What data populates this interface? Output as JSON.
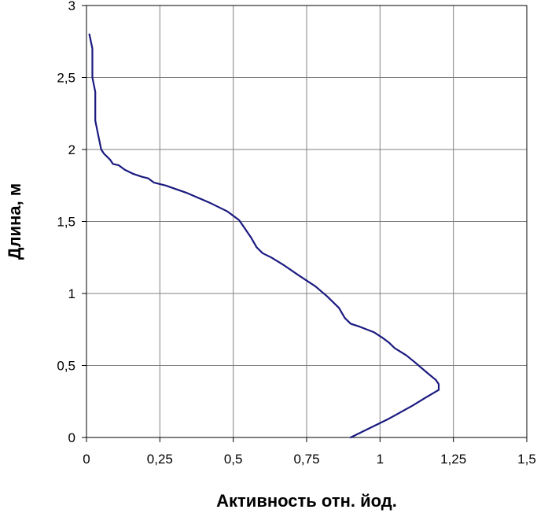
{
  "chart_data": {
    "type": "line",
    "title": "",
    "xlabel": "Активность отн. йод.",
    "ylabel": "Длина, м",
    "xlim": [
      0,
      1.5
    ],
    "ylim": [
      0,
      3
    ],
    "grid": true,
    "line_color": "#1a1a80",
    "x_ticks": [
      {
        "value": 0,
        "label": "0"
      },
      {
        "value": 0.25,
        "label": "0,25"
      },
      {
        "value": 0.5,
        "label": "0,5"
      },
      {
        "value": 0.75,
        "label": "0,75"
      },
      {
        "value": 1,
        "label": "1"
      },
      {
        "value": 1.25,
        "label": "1,25"
      },
      {
        "value": 1.5,
        "label": "1,5"
      }
    ],
    "y_ticks": [
      {
        "value": 0,
        "label": "0"
      },
      {
        "value": 0.5,
        "label": "0,5"
      },
      {
        "value": 1,
        "label": "1"
      },
      {
        "value": 1.5,
        "label": "1,5"
      },
      {
        "value": 2,
        "label": "2"
      },
      {
        "value": 2.5,
        "label": "2,5"
      },
      {
        "value": 3,
        "label": "3"
      }
    ],
    "series": [
      {
        "points": [
          [
            0.9,
            0.0
          ],
          [
            0.96,
            0.06
          ],
          [
            1.03,
            0.13
          ],
          [
            1.11,
            0.22
          ],
          [
            1.15,
            0.27
          ],
          [
            1.2,
            0.33
          ],
          [
            1.2,
            0.37
          ],
          [
            1.19,
            0.4
          ],
          [
            1.16,
            0.45
          ],
          [
            1.12,
            0.52
          ],
          [
            1.09,
            0.57
          ],
          [
            1.05,
            0.62
          ],
          [
            1.03,
            0.66
          ],
          [
            1.01,
            0.69
          ],
          [
            0.98,
            0.73
          ],
          [
            0.93,
            0.77
          ],
          [
            0.9,
            0.79
          ],
          [
            0.88,
            0.83
          ],
          [
            0.86,
            0.9
          ],
          [
            0.82,
            0.98
          ],
          [
            0.78,
            1.05
          ],
          [
            0.72,
            1.13
          ],
          [
            0.67,
            1.2
          ],
          [
            0.63,
            1.25
          ],
          [
            0.6,
            1.28
          ],
          [
            0.58,
            1.32
          ],
          [
            0.56,
            1.39
          ],
          [
            0.54,
            1.45
          ],
          [
            0.52,
            1.51
          ],
          [
            0.48,
            1.57
          ],
          [
            0.42,
            1.63
          ],
          [
            0.34,
            1.7
          ],
          [
            0.27,
            1.75
          ],
          [
            0.23,
            1.77
          ],
          [
            0.21,
            1.8
          ],
          [
            0.19,
            1.81
          ],
          [
            0.16,
            1.83
          ],
          [
            0.13,
            1.86
          ],
          [
            0.11,
            1.89
          ],
          [
            0.09,
            1.9
          ],
          [
            0.08,
            1.93
          ],
          [
            0.06,
            1.97
          ],
          [
            0.05,
            2.0
          ],
          [
            0.04,
            2.1
          ],
          [
            0.03,
            2.2
          ],
          [
            0.03,
            2.4
          ],
          [
            0.02,
            2.5
          ],
          [
            0.02,
            2.7
          ],
          [
            0.01,
            2.8
          ]
        ]
      }
    ]
  }
}
